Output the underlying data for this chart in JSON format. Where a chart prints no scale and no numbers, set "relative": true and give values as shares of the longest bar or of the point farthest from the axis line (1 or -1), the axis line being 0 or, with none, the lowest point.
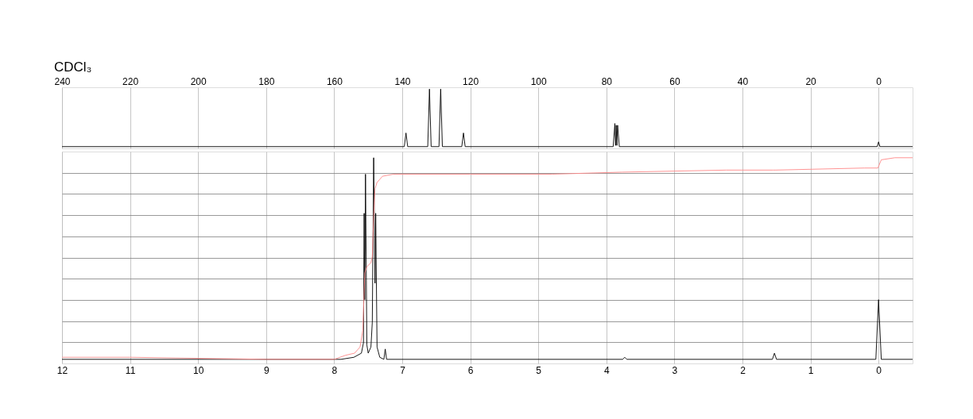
{
  "chart_data": [
    {
      "type": "line",
      "title": "CDCl₃",
      "xlim": [
        240,
        -10
      ],
      "xticks": [
        240,
        220,
        200,
        180,
        160,
        140,
        120,
        100,
        80,
        60,
        40,
        20,
        0
      ],
      "relative": true,
      "tick_labels": "x",
      "grid": "x",
      "series": [
        {
          "color": "#000000",
          "x": [
            240,
            139.4,
            138.9,
            138.4,
            132.5,
            132.0,
            131.5,
            129.2,
            128.7,
            128.2,
            122.5,
            122.0,
            121.5,
            78.0,
            77.5,
            77.3,
            77.1,
            76.9,
            76.7,
            76.2,
            0.4,
            0.0,
            -0.4,
            -10
          ],
          "values": [
            0.03,
            0.03,
            0.26,
            0.03,
            0.03,
            1.0,
            0.03,
            0.03,
            1.0,
            0.03,
            0.03,
            0.26,
            0.03,
            0.03,
            0.42,
            0.05,
            0.39,
            0.05,
            0.39,
            0.03,
            0.03,
            0.11,
            0.03,
            0.03
          ]
        }
      ]
    },
    {
      "type": "line",
      "xlim": [
        12,
        -0.5
      ],
      "xticks": [
        12,
        11,
        10,
        9,
        8,
        7,
        6,
        5,
        4,
        3,
        2,
        1,
        0
      ],
      "relative": true,
      "tick_labels": "x",
      "grid": true,
      "series": [
        {
          "color": "#000000",
          "x": [
            12,
            7.9,
            7.71,
            7.6,
            7.57,
            7.56,
            7.55,
            7.54,
            7.52,
            7.5,
            7.46,
            7.44,
            7.42,
            7.4,
            7.39,
            7.37,
            7.33,
            7.27,
            7.25,
            7.23,
            3.76,
            3.73,
            3.7,
            1.56,
            1.53,
            1.5,
            0.04,
            0.0,
            -0.04,
            -0.5
          ],
          "values": [
            0.02,
            0.02,
            0.03,
            0.05,
            0.1,
            0.73,
            0.31,
            0.92,
            0.09,
            0.05,
            0.08,
            0.2,
            1.0,
            0.39,
            0.73,
            0.08,
            0.03,
            0.02,
            0.07,
            0.02,
            0.02,
            0.03,
            0.02,
            0.02,
            0.05,
            0.02,
            0.02,
            0.31,
            0.02,
            0.02
          ]
        },
        {
          "color": "#ff8888",
          "x": [
            12,
            11,
            9,
            8,
            7.83,
            7.7,
            7.62,
            7.58,
            7.55,
            7.52,
            7.46,
            7.44,
            7.42,
            7.4,
            7.37,
            7.29,
            7.13,
            6.0,
            4.8,
            3.77,
            2.24,
            1.55,
            1.52,
            0.21,
            0.01,
            -0.04,
            -0.24,
            -0.5
          ],
          "values": [
            0.03,
            0.03,
            0.02,
            0.02,
            0.04,
            0.05,
            0.08,
            0.16,
            0.44,
            0.47,
            0.49,
            0.52,
            0.71,
            0.85,
            0.88,
            0.91,
            0.92,
            0.92,
            0.92,
            0.93,
            0.94,
            0.94,
            0.94,
            0.95,
            0.95,
            0.99,
            1.0,
            1.0
          ]
        }
      ]
    }
  ]
}
